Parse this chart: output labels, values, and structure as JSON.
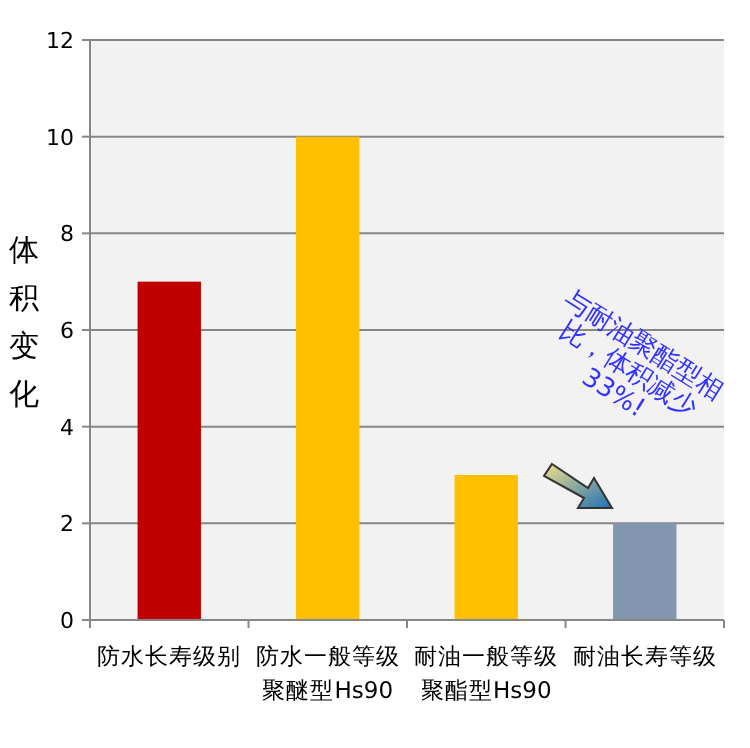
{
  "chart_data": {
    "type": "bar",
    "ylabel": "体积变化",
    "categories": [
      "防水长寿级别",
      "防水一般等级聚醚型Hs90",
      "耐油一般等级聚酯型Hs90",
      "耐油长寿等级"
    ],
    "values": [
      7,
      10,
      3,
      2
    ],
    "colors": [
      "#c00000",
      "#ffc000",
      "#ffc000",
      "#8497b0"
    ],
    "ylim": [
      0,
      12
    ],
    "yticks": [
      0,
      2,
      4,
      6,
      8,
      10,
      12
    ],
    "grid": "y",
    "annotations": [
      "与耐油聚酯型相比，体积减少33%!"
    ]
  }
}
